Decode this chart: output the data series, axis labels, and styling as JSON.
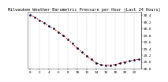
{
  "title": "Milwaukee Weather Barometric Pressure per Hour (Last 24 Hours)",
  "ylim": [
    28.8,
    30.5
  ],
  "hours": [
    0,
    1,
    2,
    3,
    4,
    5,
    6,
    7,
    8,
    9,
    10,
    11,
    12,
    13,
    14,
    15,
    16,
    17,
    18,
    19,
    20,
    21,
    22,
    23
  ],
  "pressure": [
    30.42,
    30.35,
    30.25,
    30.18,
    30.08,
    30.0,
    29.9,
    29.8,
    29.68,
    29.55,
    29.42,
    29.3,
    29.18,
    29.08,
    28.98,
    28.92,
    28.9,
    28.91,
    28.93,
    28.96,
    29.0,
    29.03,
    29.06,
    29.08
  ],
  "line_color": "#cc0000",
  "dot_color": "#000033",
  "bg_color": "#ffffff",
  "grid_color": "#888888",
  "title_color": "#000000",
  "title_fontsize": 3.8,
  "tick_fontsize": 3.2,
  "ylabel_vals": [
    30.4,
    30.2,
    30.0,
    29.8,
    29.6,
    29.4,
    29.2,
    29.0,
    28.8
  ],
  "ylabel_strs": [
    "30.4",
    "30.2",
    "30.0",
    "29.8",
    "29.6",
    "29.4",
    "29.2",
    "29.0",
    "28.8"
  ],
  "linewidth": 0.7,
  "markersize": 1.8,
  "dot_markersize": 1.8
}
